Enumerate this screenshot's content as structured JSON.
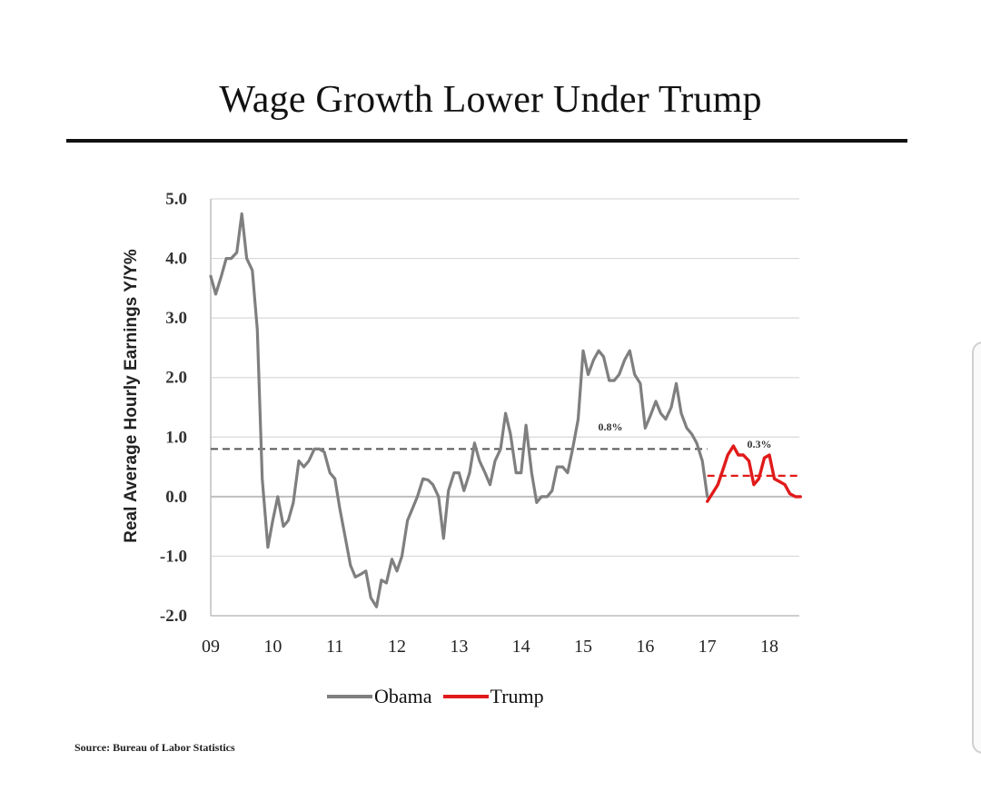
{
  "chart_data": {
    "type": "line",
    "title": "Wage Growth Lower Under Trump",
    "xlabel": "",
    "ylabel": "Real Average Hourly Earnings Y/Y%",
    "ylim": [
      -2.0,
      5.0
    ],
    "xlim": [
      2009,
      2018.7
    ],
    "yticks": [
      "-2.0",
      "-1.0",
      "0.0",
      "1.0",
      "2.0",
      "3.0",
      "4.0",
      "5.0"
    ],
    "xticks": [
      "09",
      "10",
      "11",
      "12",
      "13",
      "14",
      "15",
      "16",
      "17",
      "18"
    ],
    "grid": true,
    "legend_position": "bottom-center",
    "series": [
      {
        "name": "Obama",
        "color": "#7f7f7f",
        "points": [
          [
            2009.0,
            3.7
          ],
          [
            2009.08,
            3.4
          ],
          [
            2009.17,
            3.7
          ],
          [
            2009.25,
            4.0
          ],
          [
            2009.33,
            4.0
          ],
          [
            2009.42,
            4.1
          ],
          [
            2009.5,
            4.75
          ],
          [
            2009.58,
            4.0
          ],
          [
            2009.67,
            3.8
          ],
          [
            2009.75,
            2.8
          ],
          [
            2009.83,
            0.3
          ],
          [
            2009.92,
            -0.85
          ],
          [
            2010.0,
            -0.4
          ],
          [
            2010.08,
            0.0
          ],
          [
            2010.17,
            -0.5
          ],
          [
            2010.25,
            -0.4
          ],
          [
            2010.33,
            -0.1
          ],
          [
            2010.42,
            0.6
          ],
          [
            2010.5,
            0.5
          ],
          [
            2010.58,
            0.6
          ],
          [
            2010.67,
            0.8
          ],
          [
            2010.75,
            0.8
          ],
          [
            2010.83,
            0.75
          ],
          [
            2010.92,
            0.4
          ],
          [
            2011.0,
            0.3
          ],
          [
            2011.08,
            -0.2
          ],
          [
            2011.17,
            -0.7
          ],
          [
            2011.25,
            -1.15
          ],
          [
            2011.33,
            -1.35
          ],
          [
            2011.42,
            -1.3
          ],
          [
            2011.5,
            -1.25
          ],
          [
            2011.58,
            -1.7
          ],
          [
            2011.67,
            -1.85
          ],
          [
            2011.75,
            -1.4
          ],
          [
            2011.83,
            -1.45
          ],
          [
            2011.92,
            -1.05
          ],
          [
            2012.0,
            -1.25
          ],
          [
            2012.08,
            -1.0
          ],
          [
            2012.17,
            -0.4
          ],
          [
            2012.25,
            -0.2
          ],
          [
            2012.33,
            0.0
          ],
          [
            2012.42,
            0.3
          ],
          [
            2012.5,
            0.28
          ],
          [
            2012.58,
            0.2
          ],
          [
            2012.67,
            0.0
          ],
          [
            2012.75,
            -0.7
          ],
          [
            2012.83,
            0.1
          ],
          [
            2012.92,
            0.4
          ],
          [
            2013.0,
            0.4
          ],
          [
            2013.08,
            0.1
          ],
          [
            2013.17,
            0.4
          ],
          [
            2013.25,
            0.9
          ],
          [
            2013.33,
            0.6
          ],
          [
            2013.42,
            0.4
          ],
          [
            2013.5,
            0.2
          ],
          [
            2013.58,
            0.6
          ],
          [
            2013.67,
            0.8
          ],
          [
            2013.75,
            1.4
          ],
          [
            2013.83,
            1.05
          ],
          [
            2013.92,
            0.4
          ],
          [
            2014.0,
            0.4
          ],
          [
            2014.08,
            1.2
          ],
          [
            2014.17,
            0.4
          ],
          [
            2014.25,
            -0.1
          ],
          [
            2014.33,
            0.0
          ],
          [
            2014.42,
            0.0
          ],
          [
            2014.5,
            0.1
          ],
          [
            2014.58,
            0.5
          ],
          [
            2014.67,
            0.5
          ],
          [
            2014.75,
            0.4
          ],
          [
            2014.83,
            0.8
          ],
          [
            2014.92,
            1.3
          ],
          [
            2015.0,
            2.45
          ],
          [
            2015.08,
            2.05
          ],
          [
            2015.17,
            2.3
          ],
          [
            2015.25,
            2.45
          ],
          [
            2015.33,
            2.35
          ],
          [
            2015.42,
            1.95
          ],
          [
            2015.5,
            1.95
          ],
          [
            2015.58,
            2.05
          ],
          [
            2015.67,
            2.3
          ],
          [
            2015.75,
            2.45
          ],
          [
            2015.83,
            2.05
          ],
          [
            2015.92,
            1.9
          ],
          [
            2016.0,
            1.15
          ],
          [
            2016.08,
            1.35
          ],
          [
            2016.17,
            1.6
          ],
          [
            2016.25,
            1.4
          ],
          [
            2016.33,
            1.3
          ],
          [
            2016.42,
            1.5
          ],
          [
            2016.5,
            1.9
          ],
          [
            2016.58,
            1.4
          ],
          [
            2016.67,
            1.15
          ],
          [
            2016.75,
            1.05
          ],
          [
            2016.83,
            0.9
          ],
          [
            2016.92,
            0.6
          ],
          [
            2017.0,
            0.0
          ]
        ],
        "average": 0.8,
        "average_label": "0.8%"
      },
      {
        "name": "Trump",
        "color": "#e11a1a",
        "points": [
          [
            2017.0,
            -0.08
          ],
          [
            2017.08,
            0.05
          ],
          [
            2017.17,
            0.2
          ],
          [
            2017.25,
            0.45
          ],
          [
            2017.33,
            0.7
          ],
          [
            2017.42,
            0.85
          ],
          [
            2017.5,
            0.7
          ],
          [
            2017.58,
            0.7
          ],
          [
            2017.67,
            0.6
          ],
          [
            2017.75,
            0.2
          ],
          [
            2017.83,
            0.3
          ],
          [
            2017.92,
            0.65
          ],
          [
            2018.0,
            0.7
          ],
          [
            2018.08,
            0.3
          ],
          [
            2018.17,
            0.25
          ],
          [
            2018.25,
            0.2
          ],
          [
            2018.33,
            0.05
          ],
          [
            2018.42,
            0.0
          ],
          [
            2018.5,
            0.0
          ]
        ],
        "average": 0.35,
        "average_label": "0.3%"
      }
    ],
    "source": "Source: Bureau of Labor Statistics"
  }
}
